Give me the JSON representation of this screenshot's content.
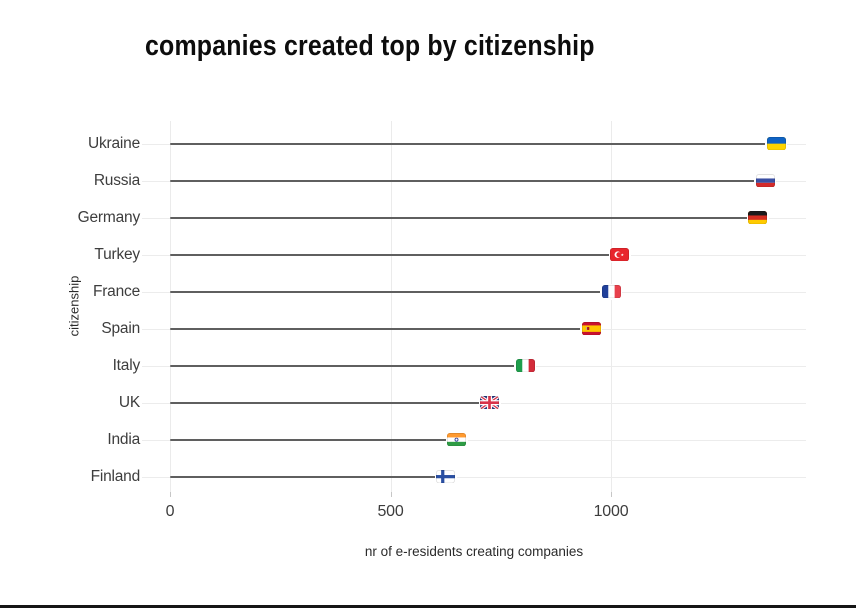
{
  "title": "companies created top by citizenship",
  "chart_data": {
    "type": "bar",
    "variant": "horizontal-lollipop-with-flag-markers",
    "title": "companies created top by citizenship",
    "xlabel": "nr of e-residents creating companies",
    "ylabel": "citizenship",
    "xlim": [
      0,
      1443
    ],
    "x_ticks": [
      {
        "value": 0,
        "label": "0"
      },
      {
        "value": 500,
        "label": "500"
      },
      {
        "value": 1000,
        "label": "1000"
      }
    ],
    "grid": "light major x gridlines and per-row horizontal gridlines",
    "legend": "none",
    "rows": [
      {
        "country": "Ukraine",
        "value": 1375,
        "flag": "flag-ukraine-icon"
      },
      {
        "country": "Russia",
        "value": 1350,
        "flag": "flag-russia-icon"
      },
      {
        "country": "Germany",
        "value": 1333,
        "flag": "flag-germany-icon"
      },
      {
        "country": "Turkey",
        "value": 1020,
        "flag": "flag-turkey-icon"
      },
      {
        "country": "France",
        "value": 1000,
        "flag": "flag-france-icon"
      },
      {
        "country": "Spain",
        "value": 955,
        "flag": "flag-spain-icon"
      },
      {
        "country": "Italy",
        "value": 805,
        "flag": "flag-italy-icon"
      },
      {
        "country": "UK",
        "value": 725,
        "flag": "flag-uk-icon"
      },
      {
        "country": "India",
        "value": 650,
        "flag": "flag-india-icon"
      },
      {
        "country": "Finland",
        "value": 625,
        "flag": "flag-finland-icon"
      }
    ],
    "colors": {
      "stem": "#5f5f5f",
      "gridline": "#ececec",
      "tick_label": "#3d3d3d",
      "title": "#0d0d0d",
      "bottom_border": "#161616"
    }
  }
}
